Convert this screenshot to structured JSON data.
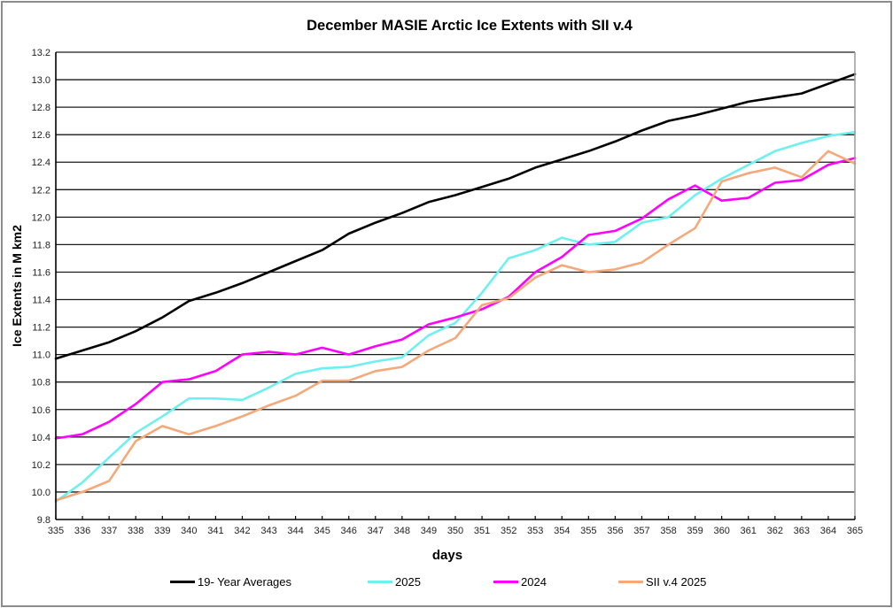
{
  "chart_data": {
    "type": "line",
    "title": "December MASIE Arctic Ice Extents with SII v.4",
    "xlabel": "days",
    "ylabel": "Ice Extents in M km2",
    "xlim": [
      335,
      365
    ],
    "ylim": [
      9.8,
      13.2
    ],
    "grid": true,
    "legend_position": "bottom",
    "x": [
      335,
      336,
      337,
      338,
      339,
      340,
      341,
      342,
      343,
      344,
      345,
      346,
      347,
      348,
      349,
      350,
      351,
      352,
      353,
      354,
      355,
      356,
      357,
      358,
      359,
      360,
      361,
      362,
      363,
      364,
      365
    ],
    "x_tick_labels": [
      "335",
      "336",
      "337",
      "338",
      "339",
      "340",
      "341",
      "342",
      "343",
      "344",
      "345",
      "346",
      "347",
      "348",
      "349",
      "350",
      "351",
      "352",
      "353",
      "354",
      "355",
      "356",
      "357",
      "358",
      "359",
      "360",
      "361",
      "362",
      "363",
      "364",
      "365"
    ],
    "y_ticks": [
      9.8,
      10.0,
      10.2,
      10.4,
      10.6,
      10.8,
      11.0,
      11.2,
      11.4,
      11.6,
      11.8,
      12.0,
      12.2,
      12.4,
      12.6,
      12.8,
      13.0,
      13.2
    ],
    "y_tick_labels": [
      "9.8",
      "10.0",
      "10.2",
      "10.4",
      "10.6",
      "10.8",
      "11.0",
      "11.2",
      "11.4",
      "11.6",
      "11.8",
      "12.0",
      "12.2",
      "12.4",
      "12.6",
      "12.8",
      "13.0",
      "13.2"
    ],
    "series": [
      {
        "name": "19- Year Averages",
        "color": "#000000",
        "values": [
          10.97,
          11.03,
          11.09,
          11.17,
          11.27,
          11.39,
          11.45,
          11.52,
          11.6,
          11.68,
          11.76,
          11.88,
          11.96,
          12.03,
          12.11,
          12.16,
          12.22,
          12.28,
          12.36,
          12.42,
          12.48,
          12.55,
          12.63,
          12.7,
          12.74,
          12.79,
          12.84,
          12.87,
          12.9,
          12.97,
          13.04
        ]
      },
      {
        "name": "2025",
        "color": "#6ff0f0",
        "values": [
          9.93,
          10.07,
          10.25,
          10.43,
          10.55,
          10.68,
          10.68,
          10.67,
          10.76,
          10.86,
          10.9,
          10.91,
          10.95,
          10.98,
          11.14,
          11.23,
          11.45,
          11.7,
          11.76,
          11.85,
          11.8,
          11.82,
          11.96,
          12.0,
          12.16,
          12.28,
          12.38,
          12.48,
          12.54,
          12.59,
          12.62
        ]
      },
      {
        "name": "2024",
        "color": "#ff00ff",
        "values": [
          10.39,
          10.42,
          10.51,
          10.64,
          10.8,
          10.82,
          10.88,
          11.0,
          11.02,
          11.0,
          11.05,
          11.0,
          11.06,
          11.11,
          11.22,
          11.27,
          11.33,
          11.42,
          11.6,
          11.71,
          11.87,
          11.9,
          11.99,
          12.13,
          12.23,
          12.12,
          12.14,
          12.25,
          12.27,
          12.38,
          12.43
        ]
      },
      {
        "name": "SII v.4 2025",
        "color": "#f4a97a",
        "values": [
          9.94,
          10.0,
          10.08,
          10.37,
          10.48,
          10.42,
          10.48,
          10.55,
          10.63,
          10.7,
          10.81,
          10.81,
          10.88,
          10.91,
          11.03,
          11.12,
          11.36,
          11.41,
          11.56,
          11.65,
          11.6,
          11.62,
          11.67,
          11.8,
          11.92,
          12.26,
          12.32,
          12.36,
          12.29,
          12.48,
          12.39
        ]
      }
    ]
  }
}
